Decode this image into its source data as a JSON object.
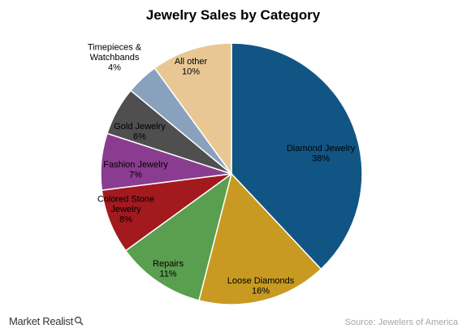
{
  "chart_data": {
    "type": "pie",
    "title": "Jewelry Sales by Category",
    "slices": [
      {
        "label": [
          "Diamond Jewelry"
        ],
        "percent_label": "38%",
        "value": 38,
        "color": "#115585",
        "text_color": "#000000"
      },
      {
        "label": [
          "Loose Diamonds"
        ],
        "percent_label": "16%",
        "value": 16,
        "color": "#c89a21",
        "text_color": "#000000"
      },
      {
        "label": [
          "Repairs"
        ],
        "percent_label": "11%",
        "value": 11,
        "color": "#5a9e4f",
        "text_color": "#000000"
      },
      {
        "label": [
          "Colored Stone",
          "Jewelry"
        ],
        "percent_label": "8%",
        "value": 8,
        "color": "#a21a1e",
        "text_color": "#000000"
      },
      {
        "label": [
          "Fashion Jewelry"
        ],
        "percent_label": "7%",
        "value": 7,
        "color": "#8a3d90",
        "text_color": "#000000"
      },
      {
        "label": [
          "Gold Jewelry"
        ],
        "percent_label": "6%",
        "value": 6,
        "color": "#4f4f4f",
        "text_color": "#000000"
      },
      {
        "label": [
          "Timepieces &",
          "Watchbands"
        ],
        "percent_label": "4%",
        "value": 4,
        "color": "#89a1bd",
        "text_color": "#000000"
      },
      {
        "label": [
          "All other"
        ],
        "percent_label": "10%",
        "value": 10,
        "color": "#e9c795",
        "text_color": "#000000"
      }
    ],
    "start_angle_deg": 0,
    "direction": "clockwise"
  },
  "footer": {
    "brand": "Market Realist",
    "source": "Source: Jewelers of America"
  }
}
